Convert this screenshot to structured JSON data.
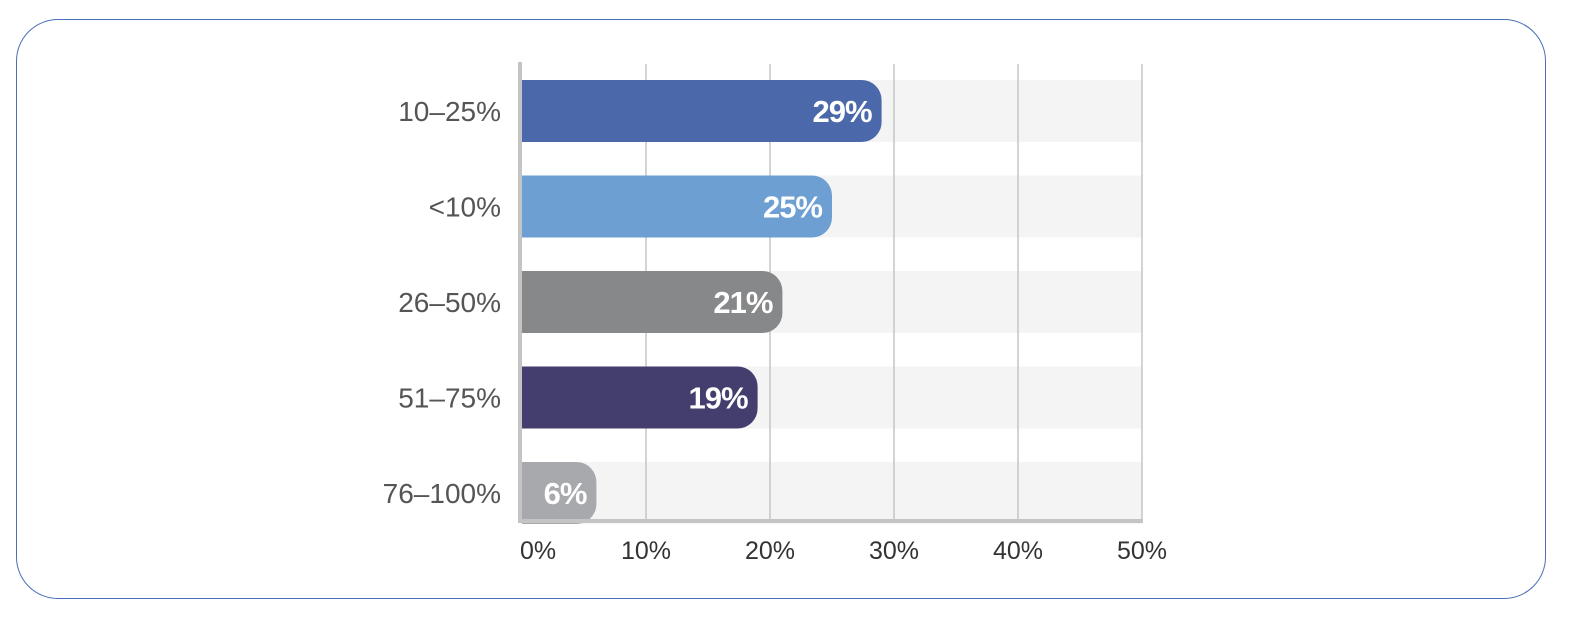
{
  "chart_data": {
    "type": "bar",
    "orientation": "horizontal",
    "title": "",
    "xlabel": "",
    "ylabel": "",
    "xlim": [
      0,
      50
    ],
    "grid": true,
    "categories": [
      "10–25%",
      "<10%",
      "26–50%",
      "51–75%",
      "76–100%"
    ],
    "values": [
      29,
      25,
      21,
      19,
      6
    ],
    "data_labels": [
      "29%",
      "25%",
      "21%",
      "19%",
      "6%"
    ],
    "colors": [
      "#4b68ab",
      "#6e9fd3",
      "#878889",
      "#433e6e",
      "#a8a9ac"
    ],
    "x_ticks": [
      "0%",
      "10%",
      "20%",
      "30%",
      "40%",
      "50%"
    ]
  }
}
